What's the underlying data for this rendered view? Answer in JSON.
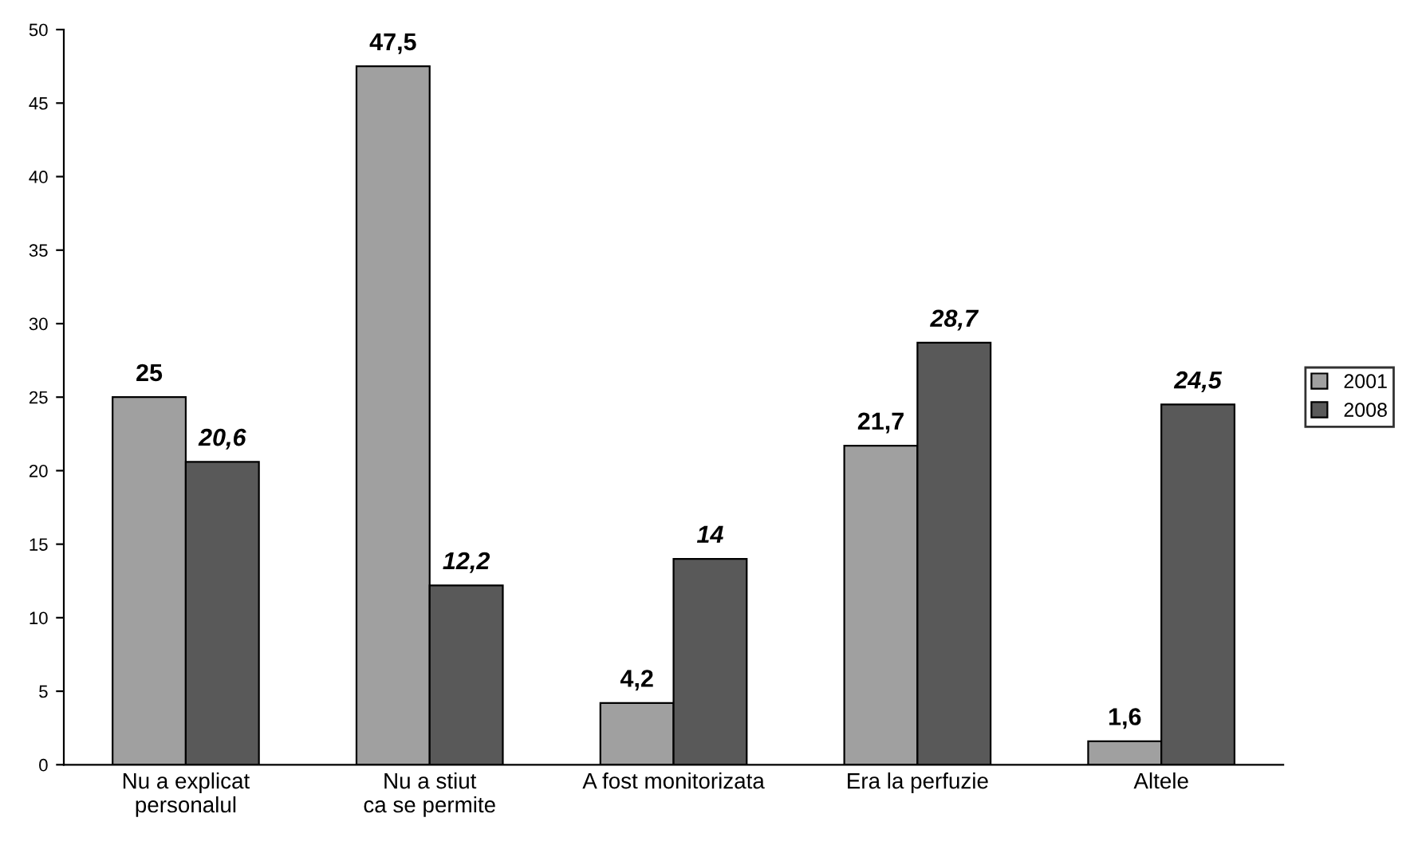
{
  "chart_data": {
    "type": "bar",
    "categories": [
      "Nu a explicat personalul",
      "Nu a stiut ca se permite",
      "A fost monitorizata",
      "Era la perfuzie",
      "Altele"
    ],
    "series": [
      {
        "name": "2001",
        "color": "#a0a0a0",
        "values": [
          25,
          47.5,
          4.2,
          21.7,
          1.6
        ],
        "value_labels": [
          "25",
          "47,5",
          "4,2",
          "21,7",
          "1,6"
        ]
      },
      {
        "name": "2008",
        "color": "#595959",
        "values": [
          20.6,
          12.2,
          14,
          28.7,
          24.5
        ],
        "value_labels": [
          "20,6",
          "12,2",
          "14",
          "28,7",
          "24,5"
        ]
      }
    ],
    "ylim": [
      0,
      50
    ],
    "yticks": [
      0,
      5,
      10,
      15,
      20,
      25,
      30,
      35,
      40,
      45,
      50
    ],
    "grid": false,
    "legend": "right"
  }
}
